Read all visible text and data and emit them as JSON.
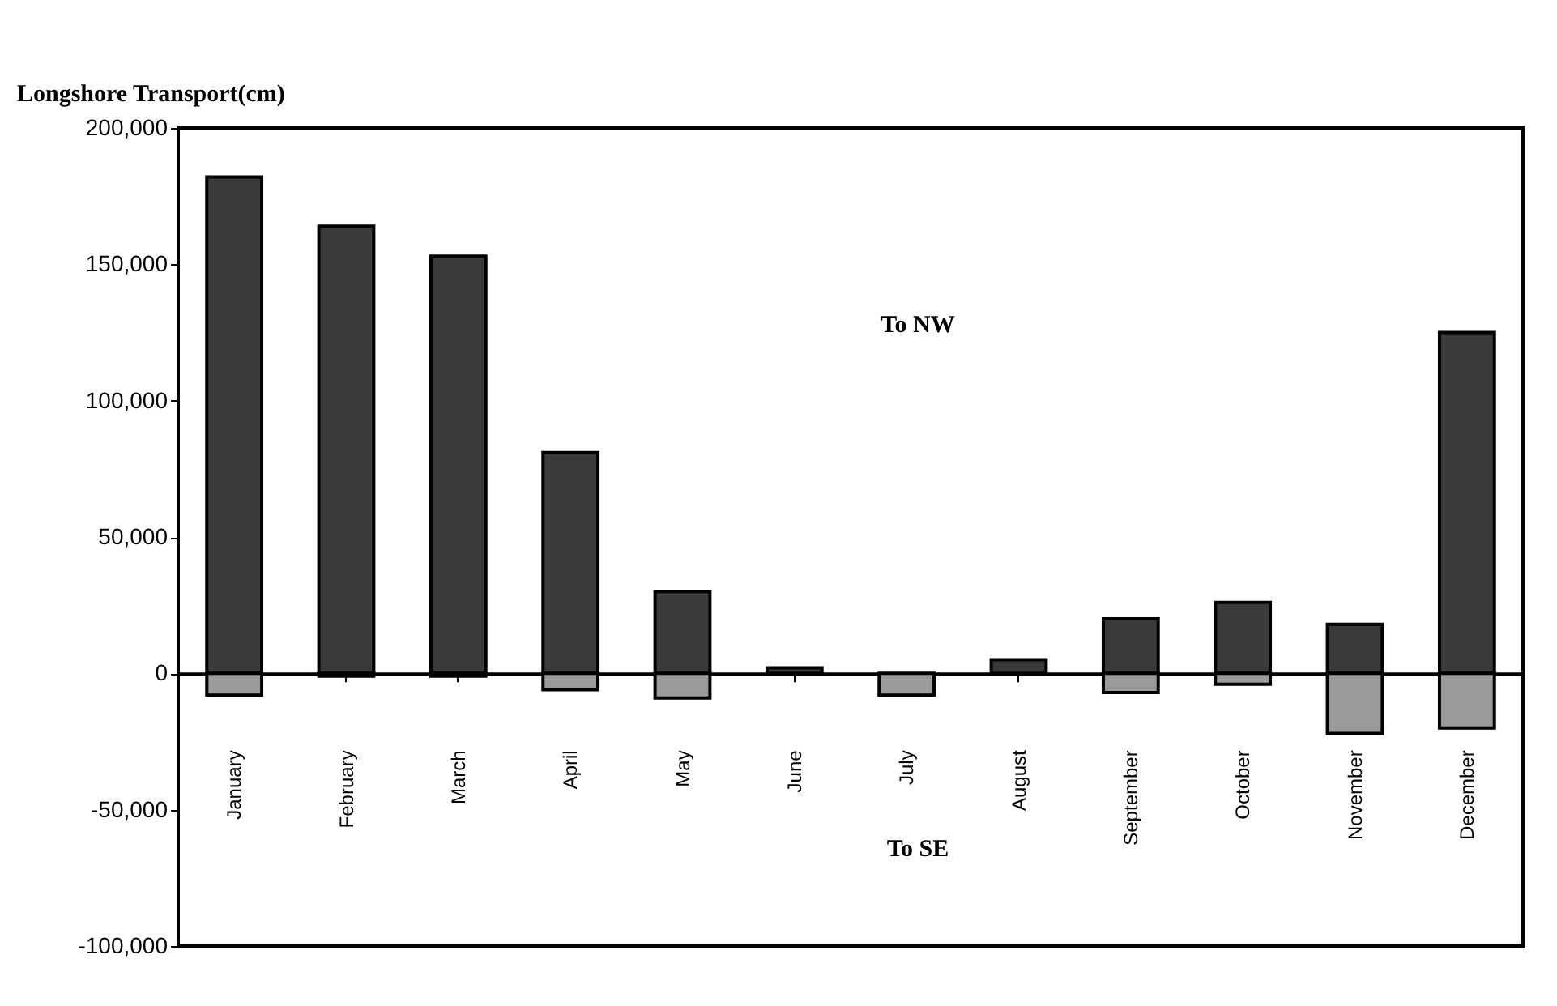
{
  "chart_data": {
    "type": "bar",
    "ylabel": "Longshore Transport(cm)",
    "categories": [
      "January",
      "February",
      "March",
      "April",
      "May",
      "June",
      "July",
      "August",
      "September",
      "October",
      "November",
      "December"
    ],
    "series": [
      {
        "color": "#3a3a3a",
        "values": [
          182000,
          164000,
          153000,
          81000,
          30000,
          2000,
          null,
          5000,
          20000,
          26000,
          18000,
          125000
        ]
      },
      {
        "color": "#9a9a9a",
        "values": [
          -8000,
          -1000,
          -1000,
          -6000,
          -9000,
          null,
          -8000,
          null,
          -7000,
          -4000,
          -22000,
          -20000
        ]
      }
    ],
    "stacked": true,
    "ylim": [
      -100000,
      200000
    ],
    "yticks": [
      {
        "value": -100000,
        "label": "-100,000"
      },
      {
        "value": -50000,
        "label": "-50,000"
      },
      0,
      {
        "value": 50000,
        "label": "50,000"
      },
      {
        "value": 100000,
        "label": "100,000"
      },
      {
        "value": 150000,
        "label": "150,000"
      },
      {
        "value": 200000,
        "label": "200,000"
      }
    ],
    "annotations": [
      "To NW",
      "To SE"
    ]
  }
}
